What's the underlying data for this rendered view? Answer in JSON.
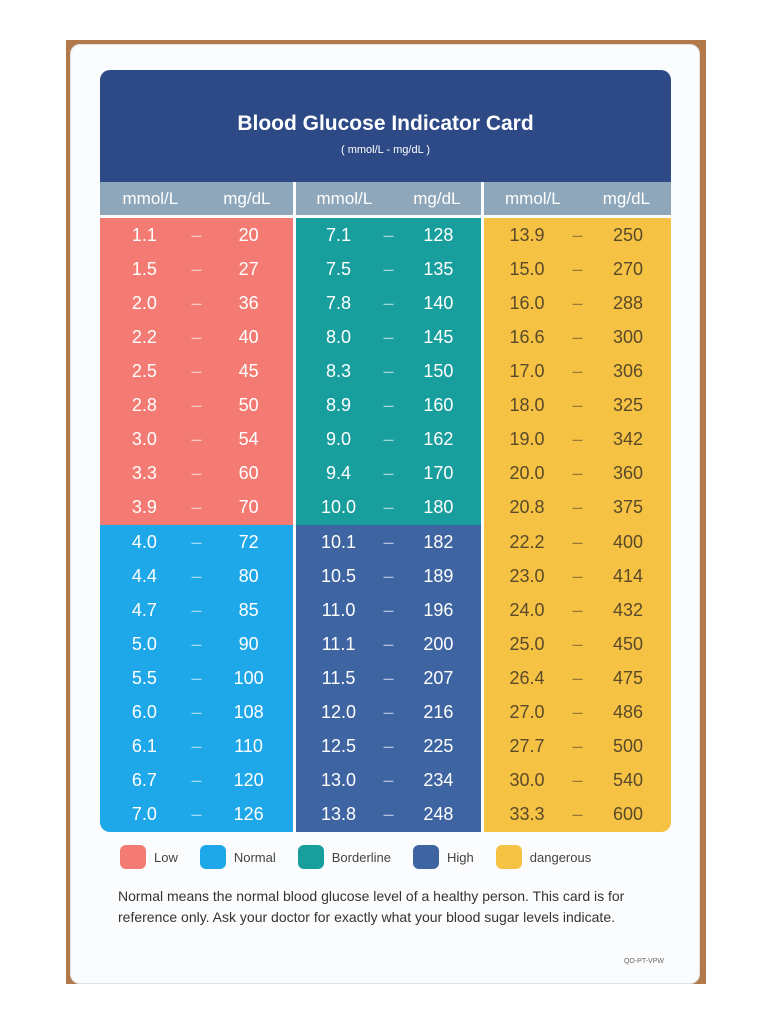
{
  "title": "Blood Glucose Indicator Card",
  "subtitle": "( mmol/L - mg/dL )",
  "column_headers": {
    "mmol": "mmol/L",
    "mgdl": "mg/dL"
  },
  "separator": "–",
  "colors": {
    "low": "#f37b73",
    "normal": "#1ea8e9",
    "borderline": "#189e9c",
    "high": "#3f64a2",
    "dangerous": "#f6c244"
  },
  "columns": [
    {
      "rows": [
        [
          "1.1",
          "20",
          "low"
        ],
        [
          "1.5",
          "27",
          "low"
        ],
        [
          "2.0",
          "36",
          "low"
        ],
        [
          "2.2",
          "40",
          "low"
        ],
        [
          "2.5",
          "45",
          "low"
        ],
        [
          "2.8",
          "50",
          "low"
        ],
        [
          "3.0",
          "54",
          "low"
        ],
        [
          "3.3",
          "60",
          "low"
        ],
        [
          "3.9",
          "70",
          "low"
        ],
        [
          "4.0",
          "72",
          "normal"
        ],
        [
          "4.4",
          "80",
          "normal"
        ],
        [
          "4.7",
          "85",
          "normal"
        ],
        [
          "5.0",
          "90",
          "normal"
        ],
        [
          "5.5",
          "100",
          "normal"
        ],
        [
          "6.0",
          "108",
          "normal"
        ],
        [
          "6.1",
          "110",
          "normal"
        ],
        [
          "6.7",
          "120",
          "normal"
        ],
        [
          "7.0",
          "126",
          "normal"
        ]
      ]
    },
    {
      "rows": [
        [
          "7.1",
          "128",
          "borderline"
        ],
        [
          "7.5",
          "135",
          "borderline"
        ],
        [
          "7.8",
          "140",
          "borderline"
        ],
        [
          "8.0",
          "145",
          "borderline"
        ],
        [
          "8.3",
          "150",
          "borderline"
        ],
        [
          "8.9",
          "160",
          "borderline"
        ],
        [
          "9.0",
          "162",
          "borderline"
        ],
        [
          "9.4",
          "170",
          "borderline"
        ],
        [
          "10.0",
          "180",
          "borderline"
        ],
        [
          "10.1",
          "182",
          "high"
        ],
        [
          "10.5",
          "189",
          "high"
        ],
        [
          "11.0",
          "196",
          "high"
        ],
        [
          "11.1",
          "200",
          "high"
        ],
        [
          "11.5",
          "207",
          "high"
        ],
        [
          "12.0",
          "216",
          "high"
        ],
        [
          "12.5",
          "225",
          "high"
        ],
        [
          "13.0",
          "234",
          "high"
        ],
        [
          "13.8",
          "248",
          "high"
        ]
      ]
    },
    {
      "rows": [
        [
          "13.9",
          "250",
          "dangerous"
        ],
        [
          "15.0",
          "270",
          "dangerous"
        ],
        [
          "16.0",
          "288",
          "dangerous"
        ],
        [
          "16.6",
          "300",
          "dangerous"
        ],
        [
          "17.0",
          "306",
          "dangerous"
        ],
        [
          "18.0",
          "325",
          "dangerous"
        ],
        [
          "19.0",
          "342",
          "dangerous"
        ],
        [
          "20.0",
          "360",
          "dangerous"
        ],
        [
          "20.8",
          "375",
          "dangerous"
        ],
        [
          "22.2",
          "400",
          "dangerous"
        ],
        [
          "23.0",
          "414",
          "dangerous"
        ],
        [
          "24.0",
          "432",
          "dangerous"
        ],
        [
          "25.0",
          "450",
          "dangerous"
        ],
        [
          "26.4",
          "475",
          "dangerous"
        ],
        [
          "27.0",
          "486",
          "dangerous"
        ],
        [
          "27.7",
          "500",
          "dangerous"
        ],
        [
          "30.0",
          "540",
          "dangerous"
        ],
        [
          "33.3",
          "600",
          "dangerous"
        ]
      ]
    }
  ],
  "legend": [
    {
      "key": "low",
      "label": "Low"
    },
    {
      "key": "normal",
      "label": "Normal"
    },
    {
      "key": "borderline",
      "label": "Borderline"
    },
    {
      "key": "high",
      "label": "High"
    },
    {
      "key": "dangerous",
      "label": "dangerous"
    }
  ],
  "note": "Normal means the normal blood glucose level of a healthy person. This card is for reference only. Ask your doctor for exactly what your blood sugar levels indicate.",
  "code": "QO-PT-VPW"
}
